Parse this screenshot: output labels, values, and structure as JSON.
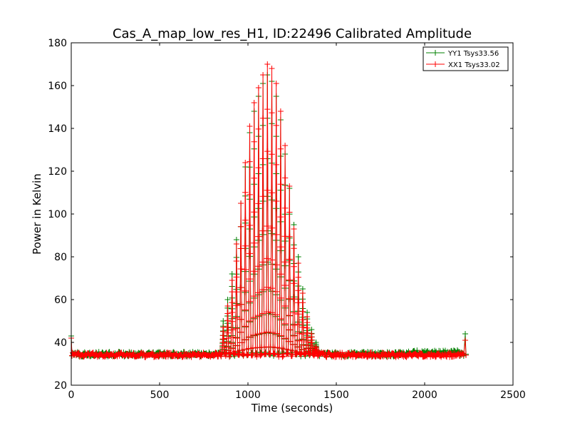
{
  "chart_data": {
    "type": "line",
    "title": "Cas_A_map_low_res_H1, ID:22496 Calibrated Amplitude",
    "xlabel": "Time (seconds)",
    "ylabel": "Power in Kelvin",
    "xlim": [
      0,
      2500
    ],
    "ylim": [
      20,
      180
    ],
    "xticks": [
      0,
      500,
      1000,
      1500,
      2000,
      2500
    ],
    "yticks": [
      20,
      40,
      60,
      80,
      100,
      120,
      140,
      160,
      180
    ],
    "grid": false,
    "legend_position": "top-right",
    "marker": "+",
    "series": [
      {
        "name": "YY1 Tsys33.56",
        "color": "#008000"
      },
      {
        "name": "XX1 Tsys33.02",
        "color": "#ff0000"
      }
    ],
    "baseline_k": 34.5,
    "scan_peaks": [
      {
        "t": 860,
        "yy": 50,
        "xx": 47
      },
      {
        "t": 885,
        "yy": 60,
        "xx": 57
      },
      {
        "t": 910,
        "yy": 72,
        "xx": 69
      },
      {
        "t": 935,
        "yy": 88,
        "xx": 86
      },
      {
        "t": 960,
        "yy": 105,
        "xx": 105
      },
      {
        "t": 985,
        "yy": 122,
        "xx": 124
      },
      {
        "t": 1010,
        "yy": 138,
        "xx": 141
      },
      {
        "t": 1035,
        "yy": 148,
        "xx": 152
      },
      {
        "t": 1060,
        "yy": 155,
        "xx": 159
      },
      {
        "t": 1085,
        "yy": 161,
        "xx": 165
      },
      {
        "t": 1110,
        "yy": 165,
        "xx": 170
      },
      {
        "t": 1135,
        "yy": 162,
        "xx": 168
      },
      {
        "t": 1160,
        "yy": 155,
        "xx": 161
      },
      {
        "t": 1185,
        "yy": 144,
        "xx": 148
      },
      {
        "t": 1210,
        "yy": 128,
        "xx": 132
      },
      {
        "t": 1235,
        "yy": 112,
        "xx": 113
      },
      {
        "t": 1260,
        "yy": 95,
        "xx": 93
      },
      {
        "t": 1285,
        "yy": 80,
        "xx": 77
      },
      {
        "t": 1310,
        "yy": 65,
        "xx": 63
      },
      {
        "t": 1335,
        "yy": 54,
        "xx": 52
      },
      {
        "t": 1360,
        "yy": 46,
        "xx": 44
      },
      {
        "t": 1385,
        "yy": 40,
        "xx": 38
      }
    ],
    "end_spikes": [
      {
        "t": 0,
        "yy": 43,
        "xx": 42
      },
      {
        "t": 2230,
        "yy": 44,
        "xx": 41
      }
    ]
  }
}
